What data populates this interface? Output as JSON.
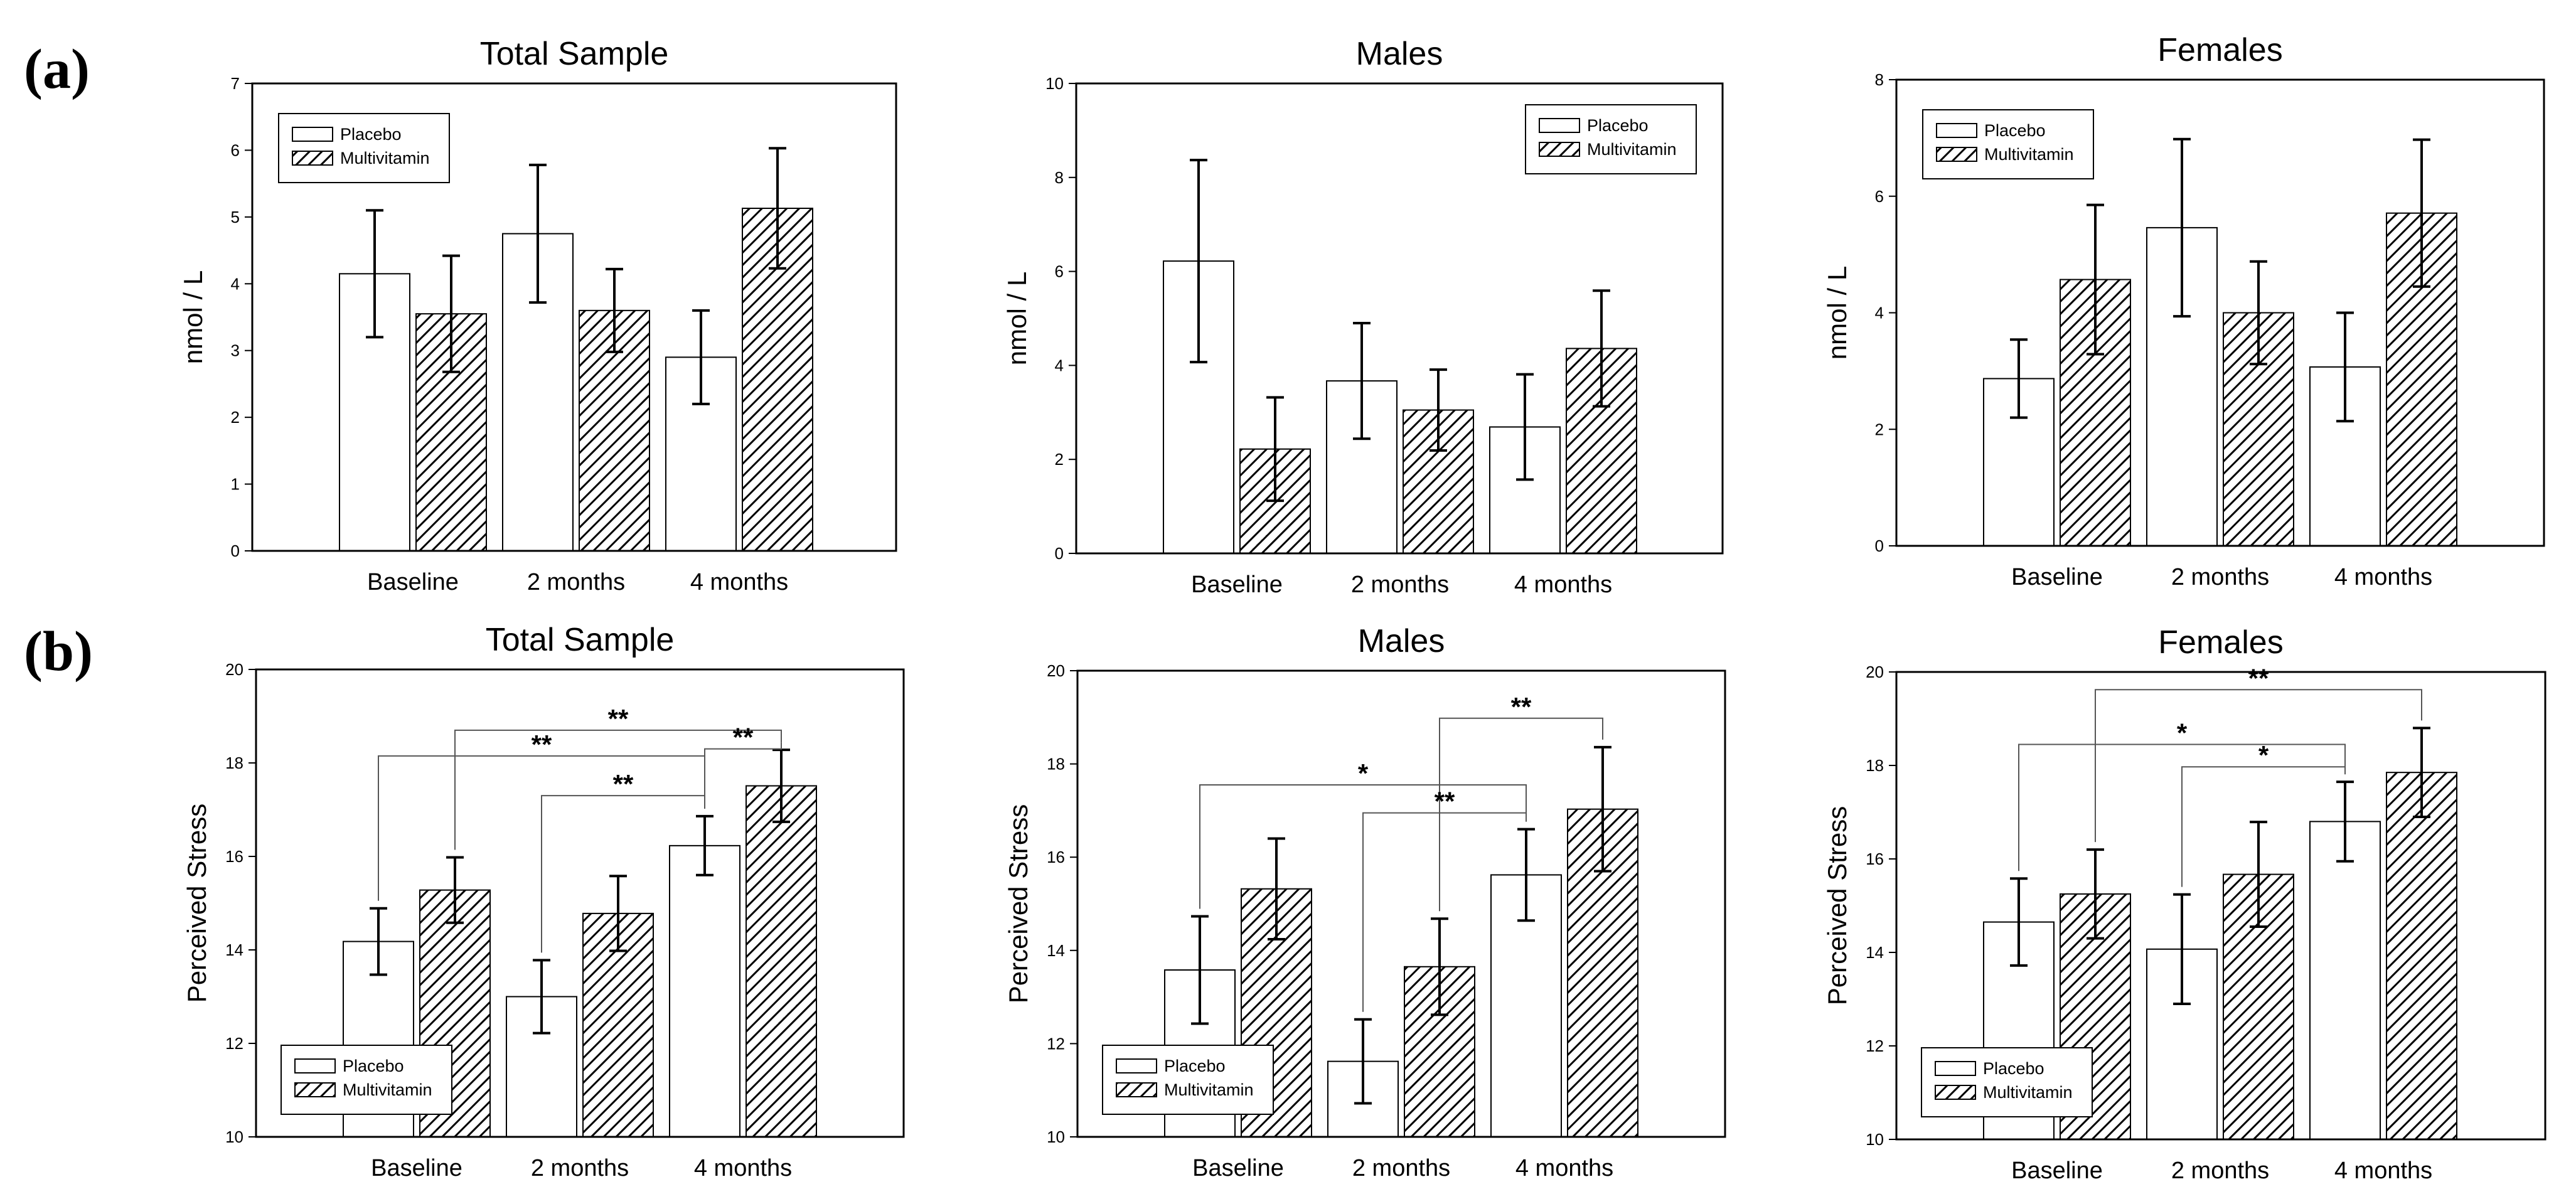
{
  "panel_labels": [
    "(a)",
    "(b)"
  ],
  "colors": {
    "placebo_fill": "#ffffff",
    "multivitamin_fill": "hatched",
    "stroke": "#000000"
  },
  "chart_data": [
    {
      "type": "bar",
      "panel": "(a)",
      "title": "Total Sample",
      "ylabel": "nmol / L",
      "xlabel": "",
      "categories": [
        "Baseline",
        "2 months",
        "4 months"
      ],
      "ylim": [
        0,
        7
      ],
      "yticks": [
        0,
        1,
        2,
        3,
        4,
        5,
        6,
        7
      ],
      "legend": {
        "position": "top-left",
        "labels": [
          "Placebo",
          "Multivitamin"
        ]
      },
      "series": [
        {
          "name": "Placebo",
          "values": [
            4.15,
            4.75,
            2.9
          ],
          "errors": [
            0.95,
            1.03,
            0.7
          ]
        },
        {
          "name": "Multivitamin",
          "values": [
            3.55,
            3.6,
            5.13
          ],
          "errors": [
            0.87,
            0.62,
            0.9
          ]
        }
      ],
      "significance": []
    },
    {
      "type": "bar",
      "panel": "(a)",
      "title": "Males",
      "ylabel": "nmol / L",
      "xlabel": "",
      "categories": [
        "Baseline",
        "2 months",
        "4 months"
      ],
      "ylim": [
        0,
        10
      ],
      "yticks": [
        0,
        2,
        4,
        6,
        8,
        10
      ],
      "legend": {
        "position": "top-right",
        "labels": [
          "Placebo",
          "Multivitamin"
        ]
      },
      "series": [
        {
          "name": "Placebo",
          "values": [
            6.22,
            3.67,
            2.69
          ],
          "errors": [
            2.15,
            1.23,
            1.12
          ]
        },
        {
          "name": "Multivitamin",
          "values": [
            2.22,
            3.05,
            4.36
          ],
          "errors": [
            1.1,
            0.86,
            1.23
          ]
        }
      ],
      "significance": []
    },
    {
      "type": "bar",
      "panel": "(a)",
      "title": "Females",
      "ylabel": "nmol / L",
      "xlabel": "",
      "categories": [
        "Baseline",
        "2 months",
        "4 months"
      ],
      "ylim": [
        0,
        8
      ],
      "yticks": [
        0,
        2,
        4,
        6,
        8
      ],
      "legend": {
        "position": "top-left",
        "labels": [
          "Placebo",
          "Multivitamin"
        ]
      },
      "series": [
        {
          "name": "Placebo",
          "values": [
            2.87,
            5.46,
            3.07
          ],
          "errors": [
            0.67,
            1.52,
            0.93
          ]
        },
        {
          "name": "Multivitamin",
          "values": [
            4.57,
            4.0,
            5.71
          ],
          "errors": [
            1.28,
            0.88,
            1.26
          ]
        }
      ],
      "significance": []
    },
    {
      "type": "bar",
      "panel": "(b)",
      "title": "Total Sample",
      "ylabel": "Perceived Stress",
      "xlabel": "",
      "categories": [
        "Baseline",
        "2 months",
        "4 months"
      ],
      "ylim": [
        10,
        20
      ],
      "yticks": [
        10,
        12,
        14,
        16,
        18,
        20
      ],
      "legend": {
        "position": "bottom-left",
        "labels": [
          "Placebo",
          "Multivitamin"
        ]
      },
      "series": [
        {
          "name": "Placebo",
          "values": [
            14.18,
            13.0,
            16.23
          ],
          "errors": [
            0.71,
            0.78,
            0.63
          ]
        },
        {
          "name": "Multivitamin",
          "values": [
            15.28,
            14.78,
            17.51
          ],
          "errors": [
            0.7,
            0.8,
            0.77
          ]
        }
      ],
      "significance": [
        {
          "from": [
            "Multivitamin",
            "Baseline"
          ],
          "to": [
            "Multivitamin",
            "4 months"
          ],
          "label": "**",
          "level": 18.7
        },
        {
          "from": [
            "Placebo",
            "4 months"
          ],
          "to": [
            "Multivitamin",
            "4 months"
          ],
          "label": "**",
          "level": 18.3
        },
        {
          "from": [
            "Placebo",
            "Baseline"
          ],
          "to": [
            "Placebo",
            "4 months"
          ],
          "label": "**",
          "level": 18.15
        },
        {
          "from": [
            "Placebo",
            "2 months"
          ],
          "to": [
            "Placebo",
            "4 months"
          ],
          "label": "**",
          "level": 17.3
        }
      ]
    },
    {
      "type": "bar",
      "panel": "(b)",
      "title": "Males",
      "ylabel": "Perceived Stress",
      "xlabel": "",
      "categories": [
        "Baseline",
        "2 months",
        "4 months"
      ],
      "ylim": [
        10,
        20
      ],
      "yticks": [
        10,
        12,
        14,
        16,
        18,
        20
      ],
      "legend": {
        "position": "bottom-left",
        "labels": [
          "Placebo",
          "Multivitamin"
        ]
      },
      "series": [
        {
          "name": "Placebo",
          "values": [
            13.58,
            11.62,
            15.62
          ],
          "errors": [
            1.15,
            0.9,
            0.98
          ]
        },
        {
          "name": "Multivitamin",
          "values": [
            15.32,
            13.65,
            17.03
          ],
          "errors": [
            1.08,
            1.03,
            1.33
          ]
        }
      ],
      "significance": [
        {
          "from": [
            "Multivitamin",
            "2 months"
          ],
          "to": [
            "Multivitamin",
            "4 months"
          ],
          "label": "**",
          "level": 18.98
        },
        {
          "from": [
            "Placebo",
            "Baseline"
          ],
          "to": [
            "Placebo",
            "4 months"
          ],
          "label": "*",
          "level": 17.55
        },
        {
          "from": [
            "Placebo",
            "2 months"
          ],
          "to": [
            "Placebo",
            "4 months"
          ],
          "label": "**",
          "level": 16.95
        }
      ]
    },
    {
      "type": "bar",
      "panel": "(b)",
      "title": "Females",
      "ylabel": "Perceived Stress",
      "xlabel": "",
      "categories": [
        "Baseline",
        "2 months",
        "4 months"
      ],
      "ylim": [
        10,
        20
      ],
      "yticks": [
        10,
        12,
        14,
        16,
        18,
        20
      ],
      "legend": {
        "position": "bottom-left",
        "labels": [
          "Placebo",
          "Multivitamin"
        ]
      },
      "series": [
        {
          "name": "Placebo",
          "values": [
            14.65,
            14.07,
            16.8
          ],
          "errors": [
            0.93,
            1.17,
            0.85
          ]
        },
        {
          "name": "Multivitamin",
          "values": [
            15.25,
            15.67,
            17.85
          ],
          "errors": [
            0.95,
            1.12,
            0.95
          ]
        }
      ],
      "significance": [
        {
          "from": [
            "Multivitamin",
            "Baseline"
          ],
          "to": [
            "Multivitamin",
            "4 months"
          ],
          "label": "**",
          "level": 19.62
        },
        {
          "from": [
            "Placebo",
            "Baseline"
          ],
          "to": [
            "Placebo",
            "4 months"
          ],
          "label": "*",
          "level": 18.45
        },
        {
          "from": [
            "Placebo",
            "2 months"
          ],
          "to": [
            "Placebo",
            "4 months"
          ],
          "label": "*",
          "level": 17.97
        }
      ]
    }
  ]
}
